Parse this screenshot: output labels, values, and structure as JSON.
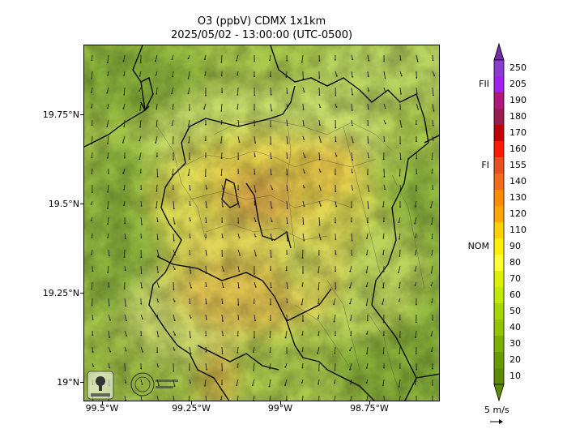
{
  "header": {
    "title": "O3 (ppbV) CDMX 1x1km",
    "subtitle": "2025/05/02 - 13:00:00 (UTC-0500)"
  },
  "map": {
    "y_ticks": [
      "19.75°N",
      "19.5°N",
      "19.25°N",
      "19°N"
    ],
    "x_ticks": [
      "99.5°W",
      "99.25°W",
      "99°W",
      "98.75°W"
    ],
    "logos": [
      {
        "name": "sedema-logo",
        "text": "SEDEMA"
      },
      {
        "name": "cdmx-logo",
        "text": "CIUDAD DE MÉXICO"
      }
    ]
  },
  "colorbar": {
    "levels": [
      "250",
      "205",
      "190",
      "180",
      "170",
      "160",
      "155",
      "140",
      "130",
      "120",
      "110",
      "90",
      "80",
      "70",
      "60",
      "50",
      "40",
      "30",
      "20",
      "10"
    ],
    "colors": [
      "#6f2fa0",
      "#8b3bd2",
      "#a020f0",
      "#b0177c",
      "#9b1c4f",
      "#c00000",
      "#ff1a00",
      "#e84f1e",
      "#f26a1b",
      "#ff8c00",
      "#ffa500",
      "#ffd000",
      "#ffee00",
      "#ffff33",
      "#ddf000",
      "#c0e800",
      "#a5d600",
      "#92c400",
      "#7cb000",
      "#6a9a00",
      "#5e8a00"
    ],
    "marks": [
      {
        "label": "FII",
        "level": "205"
      },
      {
        "label": "FI",
        "level": "155"
      },
      {
        "label": "NOM",
        "level": "90"
      }
    ]
  },
  "wind_key": {
    "label": "5 m/s"
  }
}
